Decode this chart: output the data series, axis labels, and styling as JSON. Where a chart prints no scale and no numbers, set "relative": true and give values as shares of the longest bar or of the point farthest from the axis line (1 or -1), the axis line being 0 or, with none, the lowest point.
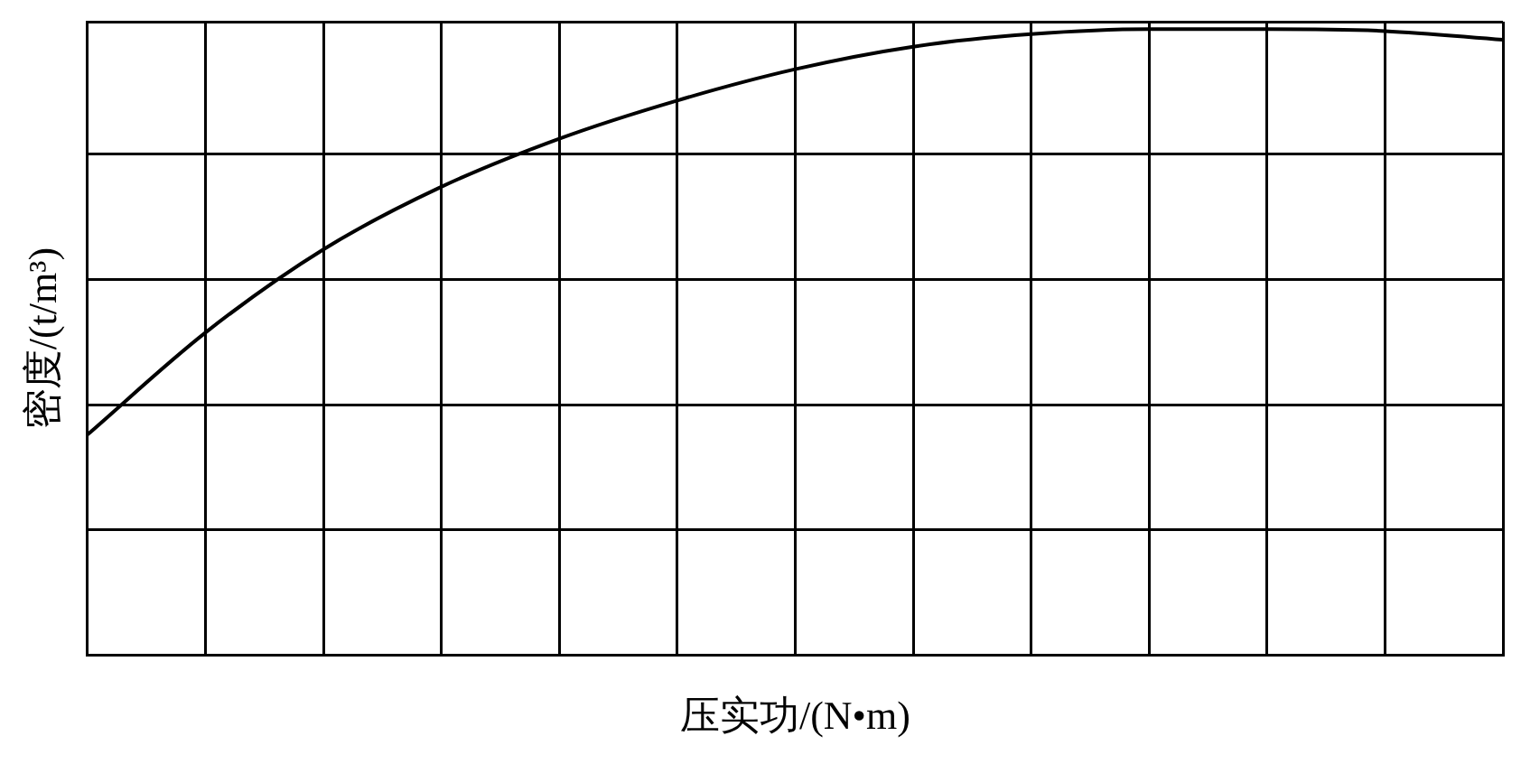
{
  "chart_data": {
    "type": "line",
    "relative": true,
    "xlabel": "压实功/(N•m)",
    "ylabel": "密度/(t/m³)",
    "categories": [
      null,
      null,
      null,
      null,
      null,
      null,
      null,
      null,
      null,
      null,
      null,
      null,
      null
    ],
    "series": [
      {
        "color": "#000000",
        "values": [
          0.352,
          0.515,
          0.648,
          0.748,
          0.825,
          0.886,
          0.936,
          0.972,
          0.992,
          1,
          1,
          0.997,
          0.983
        ]
      }
    ],
    "grid": true,
    "legend": false,
    "marker": "none",
    "line_style": "solid"
  }
}
